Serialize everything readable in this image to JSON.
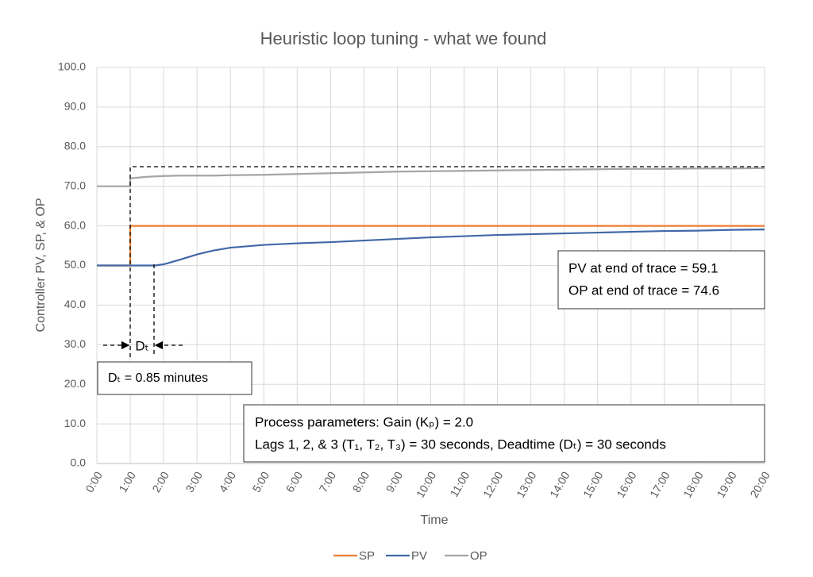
{
  "chart_data": {
    "type": "line",
    "title": "Heuristic loop tuning - what we found",
    "x_label": "Time",
    "y_label": "Controller PV, SP, & OP",
    "x": [
      0,
      1,
      1,
      1.5,
      1.75,
      2,
      2.5,
      3,
      3.5,
      4,
      5,
      6,
      7,
      8,
      9,
      10,
      11,
      12,
      13,
      14,
      15,
      16,
      17,
      18,
      19,
      20
    ],
    "series": [
      {
        "name": "SP",
        "color": "#ed7d31",
        "values": [
          50,
          50,
          60,
          60,
          60,
          60,
          60,
          60,
          60,
          60,
          60,
          60,
          60,
          60,
          60,
          60,
          60,
          60,
          60,
          60,
          60,
          60,
          60,
          60,
          60,
          60
        ]
      },
      {
        "name": "PV",
        "color": "#4168a8",
        "values": [
          50,
          50,
          50,
          50,
          50,
          50.3,
          51.5,
          52.8,
          53.8,
          54.5,
          55.2,
          55.6,
          55.9,
          56.3,
          56.7,
          57.1,
          57.4,
          57.7,
          57.9,
          58.1,
          58.3,
          58.5,
          58.7,
          58.8,
          59.0,
          59.1
        ]
      },
      {
        "name": "OP",
        "color": "#a5a5a5",
        "values": [
          70,
          70,
          72,
          72.4,
          72.5,
          72.6,
          72.7,
          72.7,
          72.7,
          72.8,
          72.9,
          73.1,
          73.3,
          73.5,
          73.7,
          73.8,
          73.9,
          74.0,
          74.1,
          74.2,
          74.3,
          74.4,
          74.4,
          74.5,
          74.5,
          74.6
        ]
      }
    ],
    "xlim": [
      0,
      20
    ],
    "xticks": [
      {
        "value": 0,
        "label": "0:00"
      },
      {
        "value": 1,
        "label": "1:00"
      },
      {
        "value": 2,
        "label": "2:00"
      },
      {
        "value": 3,
        "label": "3:00"
      },
      {
        "value": 4,
        "label": "4:00"
      },
      {
        "value": 5,
        "label": "5:00"
      },
      {
        "value": 6,
        "label": "6:00"
      },
      {
        "value": 7,
        "label": "7:00"
      },
      {
        "value": 8,
        "label": "8:00"
      },
      {
        "value": 9,
        "label": "9:00"
      },
      {
        "value": 10,
        "label": "10:00"
      },
      {
        "value": 11,
        "label": "11:00"
      },
      {
        "value": 12,
        "label": "12:00"
      },
      {
        "value": 13,
        "label": "13:00"
      },
      {
        "value": 14,
        "label": "14:00"
      },
      {
        "value": 15,
        "label": "15:00"
      },
      {
        "value": 16,
        "label": "16:00"
      },
      {
        "value": 17,
        "label": "17:00"
      },
      {
        "value": 18,
        "label": "18:00"
      },
      {
        "value": 19,
        "label": "19:00"
      },
      {
        "value": 20,
        "label": "20:00"
      }
    ],
    "ylim": [
      0,
      100
    ],
    "yticks": [
      {
        "value": 0,
        "label": "0.0"
      },
      {
        "value": 10,
        "label": "10.0"
      },
      {
        "value": 20,
        "label": "20.0"
      },
      {
        "value": 30,
        "label": "30.0"
      },
      {
        "value": 40,
        "label": "40.0"
      },
      {
        "value": 50,
        "label": "50.0"
      },
      {
        "value": 60,
        "label": "60.0"
      },
      {
        "value": 70,
        "label": "70.0"
      },
      {
        "value": 80,
        "label": "80.0"
      },
      {
        "value": 90,
        "label": "90.0"
      },
      {
        "value": 100,
        "label": "100.0"
      }
    ],
    "grid": true,
    "legend": "bottom",
    "annotations": {
      "end_of_trace": [
        "PV at end of trace = 59.1",
        "OP at end of trace = 74.6"
      ],
      "deadtime_arrow": "Dₜ",
      "deadtime_measured": "Dₜ = 0.85 minutes",
      "process_parameters": [
        "Process parameters:  Gain (Kₚ) = 2.0",
        "Lags 1, 2, & 3 (T₁, T₂, T₃) = 30 seconds, Deadtime (Dₜ) = 30 seconds"
      ]
    }
  }
}
